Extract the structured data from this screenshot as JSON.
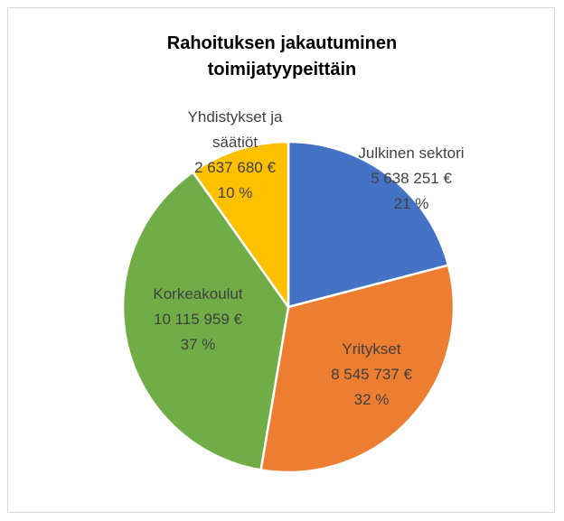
{
  "chart_data": {
    "type": "pie",
    "title": "Rahoituksen jakautuminen toimijatyypeittäin",
    "categories": [
      "Julkinen sektori",
      "Yritykset",
      "Korkeakoulut",
      "Yhdistykset ja säätiöt"
    ],
    "values": [
      5638251,
      8545737,
      10115959,
      2637680
    ],
    "value_labels": [
      "5 638 251 €",
      "8 545 737 €",
      "10 115 959 €",
      "2 637 680 €"
    ],
    "percent_labels": [
      "21 %",
      "32 %",
      "37 %",
      "10 %"
    ],
    "colors": [
      "#4472c4",
      "#ed7d31",
      "#70ad47",
      "#ffc000"
    ]
  }
}
